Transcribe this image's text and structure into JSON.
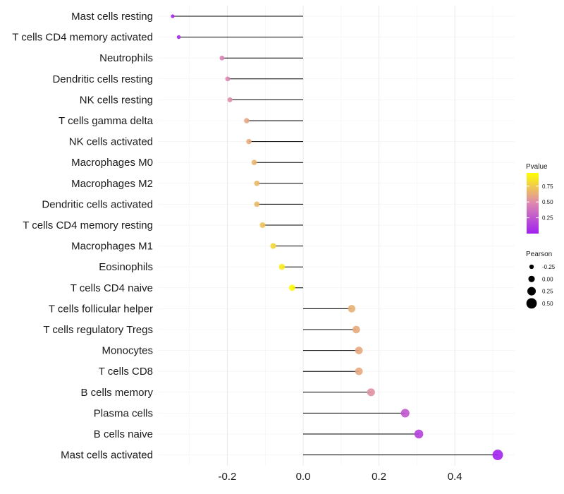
{
  "chart_data": {
    "type": "lollipop",
    "title": "",
    "xlabel": "",
    "ylabel": "",
    "xlim": [
      -0.4,
      0.55
    ],
    "x_ticks": [
      -0.2,
      0.0,
      0.2,
      0.4
    ],
    "x_tick_labels": [
      "-0.2",
      "0.0",
      "0.2",
      "0.4"
    ],
    "grid": true,
    "categories": [
      "Mast cells resting",
      "T cells CD4 memory activated",
      "Neutrophils",
      "Dendritic cells resting",
      "NK cells resting",
      "T cells gamma delta",
      "NK cells activated",
      "Macrophages M0",
      "Macrophages M2",
      "Dendritic cells activated",
      "T cells CD4 memory resting",
      "Macrophages M1",
      "Eosinophils",
      "T cells CD4 naive",
      "T cells follicular helper",
      "T cells regulatory  Tregs ",
      "Monocytes",
      "T cells CD8",
      "B cells memory",
      "Plasma cells",
      "B cells naive",
      "Mast cells activated"
    ],
    "pearson": [
      -0.344,
      -0.328,
      -0.214,
      -0.199,
      -0.193,
      -0.149,
      -0.143,
      -0.129,
      -0.122,
      -0.122,
      -0.107,
      -0.079,
      -0.056,
      -0.029,
      0.128,
      0.14,
      0.147,
      0.147,
      0.179,
      0.269,
      0.305,
      0.513
    ],
    "pvalue": [
      0.03,
      0.04,
      0.45,
      0.48,
      0.5,
      0.6,
      0.62,
      0.66,
      0.68,
      0.68,
      0.72,
      0.8,
      0.88,
      0.94,
      0.64,
      0.62,
      0.61,
      0.61,
      0.52,
      0.25,
      0.15,
      0.01
    ],
    "color_scale": {
      "low": "#a020f0",
      "mid": "#dd88b0",
      "high": "#ffff00"
    },
    "legend": {
      "position": "right",
      "pvalue_title": "Pvalue",
      "pvalue_ticks": [
        0.25,
        0.5,
        0.75
      ],
      "pvalue_tick_labels": [
        "0.25",
        "0.50",
        "0.75"
      ],
      "pvalue_range": [
        0.0,
        0.96
      ],
      "pearson_title": "Pearson",
      "pearson_values": [
        -0.25,
        0.0,
        0.25,
        0.5
      ],
      "pearson_labels": [
        "-0.25",
        "0.00",
        "0.25",
        "0.50"
      ]
    }
  }
}
